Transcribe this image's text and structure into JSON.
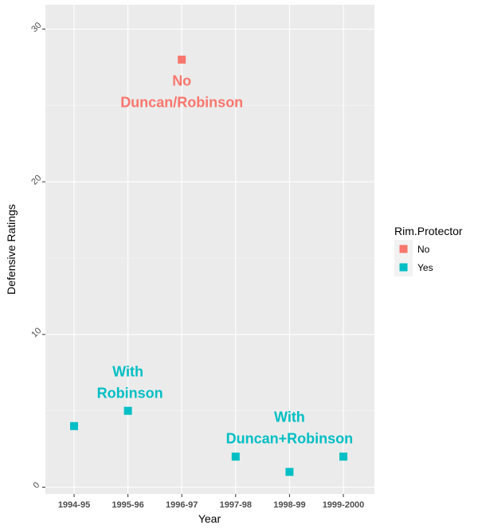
{
  "chart_data": {
    "type": "scatter",
    "xlabel": "Year",
    "ylabel": "Defensive Ratings",
    "ylim": [
      -0.5,
      31
    ],
    "categories": [
      "1994-95",
      "1995-96",
      "1996-97",
      "1997-98",
      "1998-99",
      "1999-2000"
    ],
    "y_ticks": [
      0,
      10,
      20,
      30
    ],
    "grid": true,
    "legend": {
      "title": "Rim.Protector",
      "position": "right",
      "entries": [
        {
          "label": "No",
          "color": "#F8766D"
        },
        {
          "label": "Yes",
          "color": "#00BFC4"
        }
      ]
    },
    "series": [
      {
        "name": "No",
        "color": "#F8766D",
        "points": [
          {
            "x": "1996-97",
            "y": 28
          }
        ]
      },
      {
        "name": "Yes",
        "color": "#00BFC4",
        "points": [
          {
            "x": "1994-95",
            "y": 4
          },
          {
            "x": "1995-96",
            "y": 5
          },
          {
            "x": "1997-98",
            "y": 2
          },
          {
            "x": "1998-99",
            "y": 1
          },
          {
            "x": "1999-2000",
            "y": 2
          }
        ]
      }
    ],
    "annotations": [
      {
        "lines": [
          "No",
          "Duncan/Robinson"
        ],
        "x": "1996-97",
        "y": 25.9,
        "color": "#F8766D"
      },
      {
        "lines": [
          "With",
          " Robinson"
        ],
        "x": "1995-96",
        "y": 6.85,
        "color": "#00BFC4"
      },
      {
        "lines": [
          "With",
          "Duncan+Robinson"
        ],
        "x": "1998-99",
        "y": 3.9,
        "color": "#00BFC4"
      }
    ]
  }
}
